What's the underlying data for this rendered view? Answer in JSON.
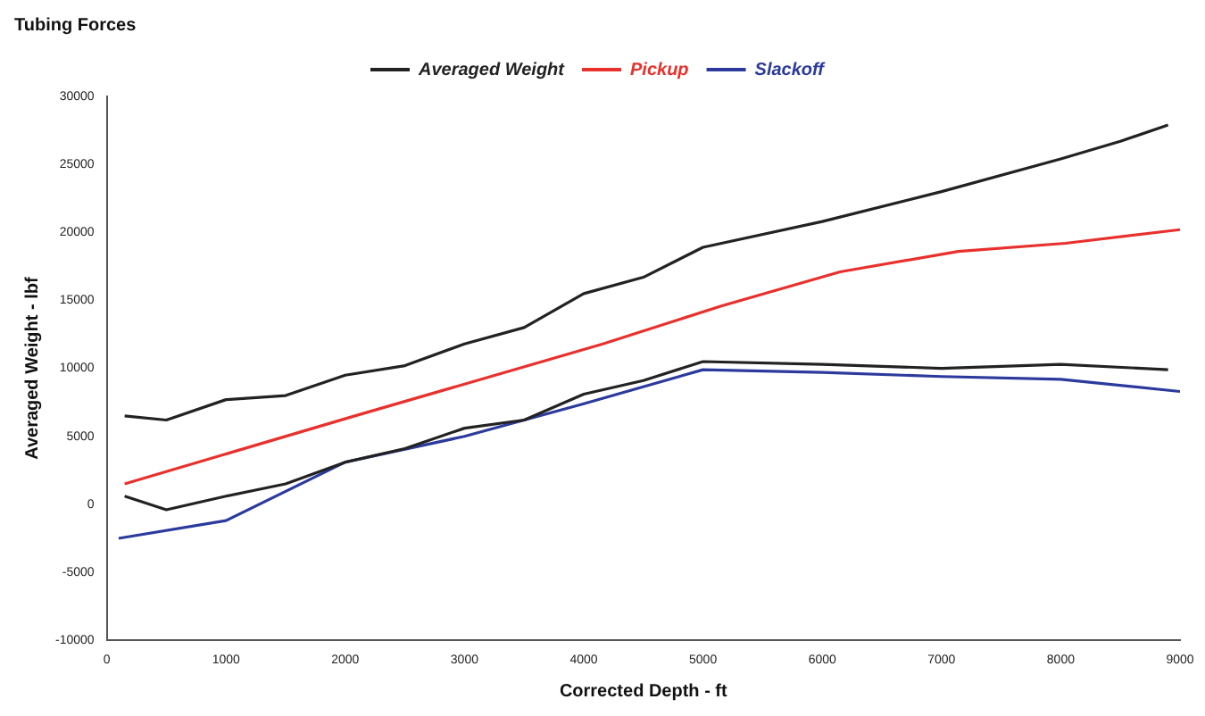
{
  "chart_data": {
    "type": "line",
    "title": "Tubing Forces",
    "xlabel": "Corrected Depth - ft",
    "ylabel": "Averaged Weight - lbf",
    "xlim": [
      0,
      9000
    ],
    "xticks": [
      0,
      1000,
      2000,
      3000,
      4000,
      5000,
      6000,
      7000,
      8000,
      9000
    ],
    "ylim": [
      -10000,
      30000
    ],
    "yticks": [
      -10000,
      -5000,
      0,
      5000,
      10000,
      15000,
      20000,
      25000,
      30000
    ],
    "grid": false,
    "legend": "top",
    "marker": "none",
    "line_style": "solid",
    "series": [
      {
        "name": "Averaged Weight",
        "color": "#222222",
        "x": [
          150,
          500,
          1000,
          1500,
          2000,
          2500,
          3000,
          3500,
          4000,
          4500,
          5000,
          6000,
          7000,
          8000,
          8500,
          8900
        ],
        "values": [
          6500,
          6200,
          7700,
          8000,
          9500,
          10200,
          11800,
          13000,
          15500,
          16700,
          18900,
          20800,
          23000,
          25400,
          26700,
          27900
        ]
      },
      {
        "color": "#222222",
        "x": [
          150,
          500,
          1000,
          1500,
          2000,
          2500,
          3000,
          3500,
          4000,
          4500,
          5000,
          6000,
          7000,
          8000,
          8900
        ],
        "values": [
          600,
          -400,
          600,
          1500,
          3100,
          4100,
          5600,
          6200,
          8100,
          9100,
          10500,
          10300,
          10000,
          10300,
          9900
        ]
      },
      {
        "name": "Pickup",
        "color": "#e8302c",
        "x": [
          150,
          2080,
          4160,
          5160,
          6150,
          7140,
          8040,
          9000
        ],
        "values": [
          1500,
          6500,
          11800,
          14600,
          17100,
          18600,
          19200,
          20200
        ]
      },
      {
        "name": "Slackoff",
        "color": "#2b3a9c",
        "x": [
          100,
          1000,
          2000,
          3000,
          4000,
          5000,
          6000,
          7000,
          8000,
          9000
        ],
        "values": [
          -2500,
          -1200,
          3100,
          5000,
          7400,
          9900,
          9700,
          9400,
          9200,
          8300
        ]
      }
    ]
  }
}
